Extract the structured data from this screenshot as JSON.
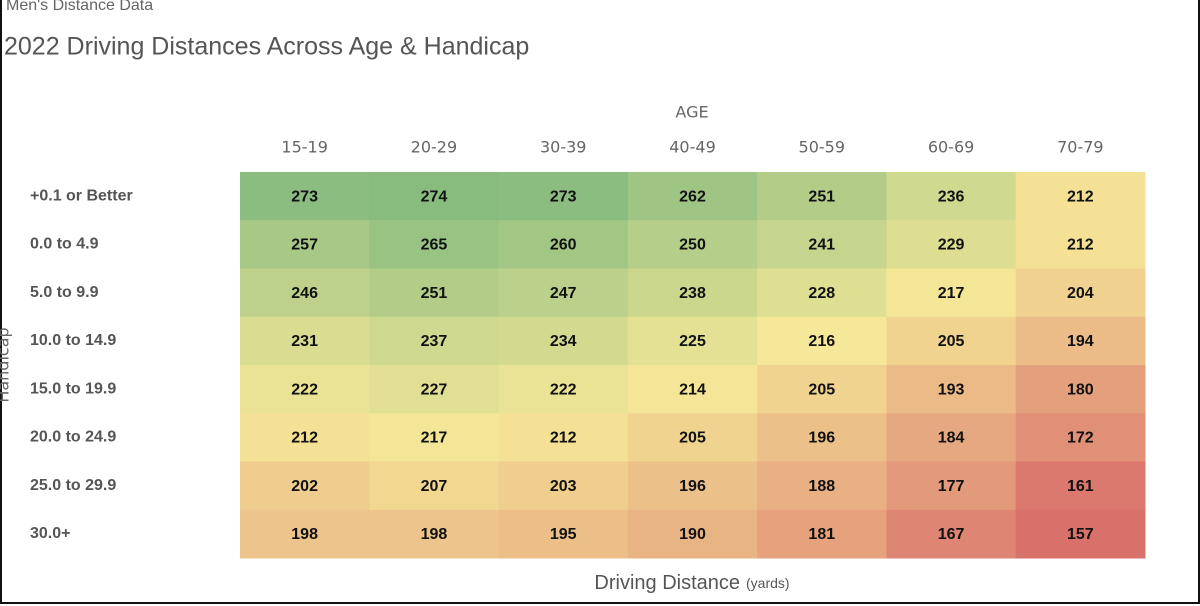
{
  "chart_data": {
    "type": "heatmap",
    "supertitle": "Men's Distance Data",
    "title": "2022 Driving Distances Across Age & Handicap",
    "x_label": "AGE",
    "y_label": "Handicap",
    "footer_label": "Driving Distance",
    "footer_unit": "(yards)",
    "x_categories": [
      "15-19",
      "20-29",
      "30-39",
      "40-49",
      "50-59",
      "60-69",
      "70-79"
    ],
    "y_categories": [
      "+0.1 or Better",
      "0.0 to 4.9",
      "5.0 to 9.9",
      "10.0 to 14.9",
      "15.0 to 19.9",
      "20.0 to 24.9",
      "25.0 to 29.9",
      "30.0+"
    ],
    "values": [
      [
        273,
        274,
        273,
        262,
        251,
        236,
        212
      ],
      [
        257,
        265,
        260,
        250,
        241,
        229,
        212
      ],
      [
        246,
        251,
        247,
        238,
        228,
        217,
        204
      ],
      [
        231,
        237,
        234,
        225,
        216,
        205,
        194
      ],
      [
        222,
        227,
        222,
        214,
        205,
        193,
        180
      ],
      [
        212,
        217,
        212,
        205,
        196,
        184,
        172
      ],
      [
        202,
        207,
        203,
        196,
        188,
        177,
        161
      ],
      [
        198,
        198,
        195,
        190,
        181,
        167,
        157
      ]
    ],
    "color_scale": [
      "#d9716b",
      "#f6e898",
      "#88bc7f"
    ]
  }
}
